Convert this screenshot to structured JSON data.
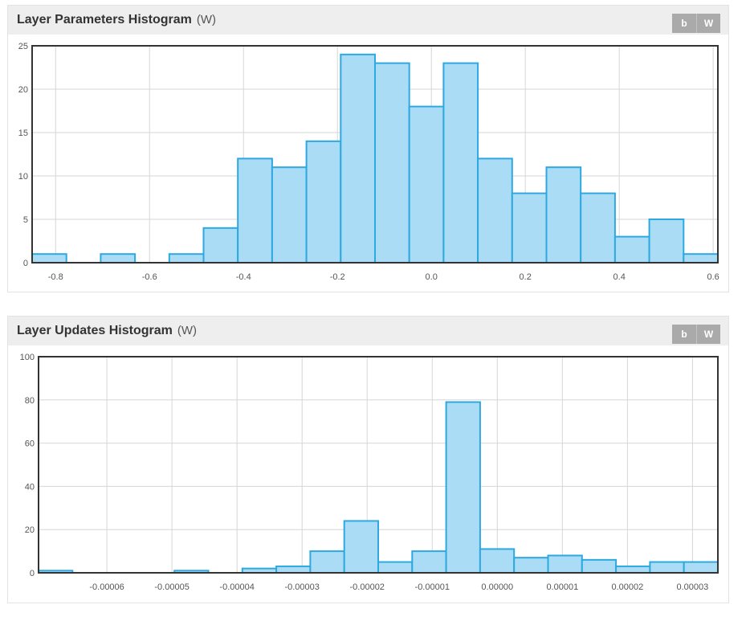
{
  "panels": [
    {
      "title": "Layer Parameters Histogram",
      "subtitle": "(W)",
      "buttons": [
        "b",
        "W"
      ]
    },
    {
      "title": "Layer Updates Histogram",
      "subtitle": "(W)",
      "buttons": [
        "b",
        "W"
      ]
    }
  ],
  "colors": {
    "bar_fill": "#aadcf5",
    "bar_stroke": "#2ea8e0",
    "grid": "#d6d6d6",
    "axis": "#333333"
  },
  "chart_data": [
    {
      "type": "bar",
      "title": "Layer Parameters Histogram",
      "xlim": [
        -0.85,
        0.61
      ],
      "ylim": [
        0,
        25
      ],
      "x_ticks": [
        "-0.8",
        "-0.6",
        "-0.4",
        "-0.2",
        "0.0",
        "0.2",
        "0.4",
        "0.6"
      ],
      "x_tick_values": [
        -0.8,
        -0.6,
        -0.4,
        -0.2,
        0.0,
        0.2,
        0.4,
        0.6
      ],
      "y_ticks": [
        "0",
        "5",
        "10",
        "15",
        "20",
        "25"
      ],
      "y_tick_values": [
        0,
        5,
        10,
        15,
        20,
        25
      ],
      "bin_edges": [
        -0.85,
        -0.777,
        -0.704,
        -0.631,
        -0.558,
        -0.485,
        -0.412,
        -0.339,
        -0.266,
        -0.193,
        -0.12,
        -0.047,
        0.026,
        0.099,
        0.172,
        0.245,
        0.318,
        0.391,
        0.464,
        0.537,
        0.61
      ],
      "values": [
        1,
        0,
        1,
        0,
        1,
        4,
        12,
        11,
        14,
        24,
        23,
        18,
        23,
        12,
        8,
        11,
        8,
        3,
        5,
        1
      ],
      "grid": true
    },
    {
      "type": "bar",
      "title": "Layer Updates Histogram",
      "xlim": [
        -7.05e-05,
        3.39e-05
      ],
      "ylim": [
        0,
        100
      ],
      "x_ticks": [
        "-0.00006",
        "-0.00005",
        "-0.00004",
        "-0.00003",
        "-0.00002",
        "-0.00001",
        "0.00000",
        "0.00001",
        "0.00002",
        "0.00003"
      ],
      "x_tick_values": [
        -6e-05,
        -5e-05,
        -4e-05,
        -3e-05,
        -2e-05,
        -1e-05,
        0.0,
        1e-05,
        2e-05,
        3e-05
      ],
      "y_ticks": [
        "0",
        "20",
        "40",
        "60",
        "80",
        "100"
      ],
      "y_tick_values": [
        0,
        20,
        40,
        60,
        80,
        100
      ],
      "bin_edges": [
        -7.05e-05,
        -6.528e-05,
        -6.006e-05,
        -5.484e-05,
        -4.962e-05,
        -4.44e-05,
        -3.918e-05,
        -3.396e-05,
        -2.874e-05,
        -2.352e-05,
        -1.83e-05,
        -1.308e-05,
        -7.86e-06,
        -2.64e-06,
        2.58e-06,
        7.8e-06,
        1.302e-05,
        1.824e-05,
        2.346e-05,
        2.868e-05,
        3.39e-05
      ],
      "values": [
        1,
        0,
        0,
        0,
        1,
        0,
        2,
        3,
        10,
        24,
        5,
        10,
        79,
        11,
        7,
        8,
        6,
        3,
        5,
        5
      ],
      "grid": true
    }
  ]
}
